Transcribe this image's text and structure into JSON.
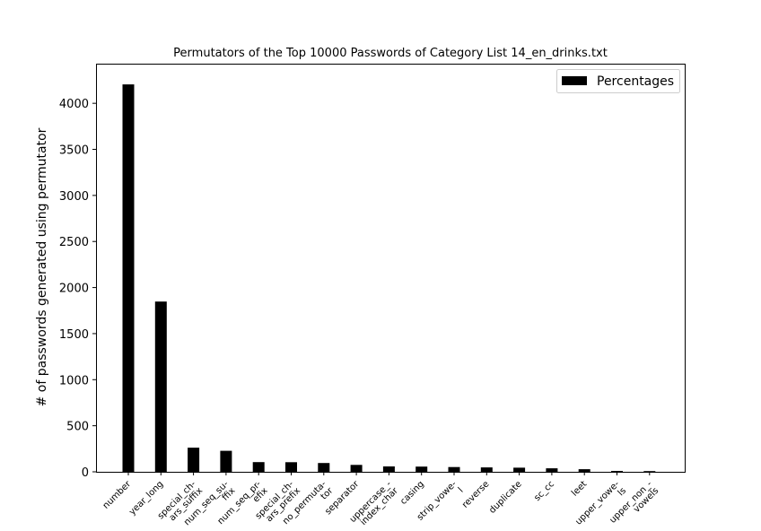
{
  "chart_data": {
    "type": "bar",
    "title": "Permutators of the Top 10000 Passwords of Category List 14_en_drinks.txt",
    "xlabel": "",
    "ylabel": "# of passwords generated using permutator",
    "ylim": [
      0,
      4430
    ],
    "yticks": [
      0,
      500,
      1000,
      1500,
      2000,
      2500,
      3000,
      3500,
      4000
    ],
    "legend_position": "top-right",
    "bar_color": "#000000",
    "categories": [
      [
        "number"
      ],
      [
        "year_long"
      ],
      [
        "special_ch-",
        "ars_suffix"
      ],
      [
        "num_seq_su-",
        "ffix"
      ],
      [
        "num_seq_pr-",
        "efix"
      ],
      [
        "special_ch-",
        "ars_prefix"
      ],
      [
        "no_permuta-",
        "tor"
      ],
      [
        "separator"
      ],
      [
        "uppercase_-",
        "index_char"
      ],
      [
        "casing"
      ],
      [
        "strip_vowe-",
        "l"
      ],
      [
        "reverse"
      ],
      [
        "duplicate"
      ],
      [
        "sc_cc"
      ],
      [
        "leet"
      ],
      [
        "upper_vowe-",
        "ls"
      ],
      [
        "upper_non_-",
        "vowels"
      ]
    ],
    "series": [
      {
        "name": "Percentages",
        "values": [
          4205,
          1848,
          262,
          228,
          105,
          104,
          95,
          75,
          58,
          56,
          52,
          48,
          45,
          38,
          28,
          10,
          8
        ]
      }
    ]
  }
}
